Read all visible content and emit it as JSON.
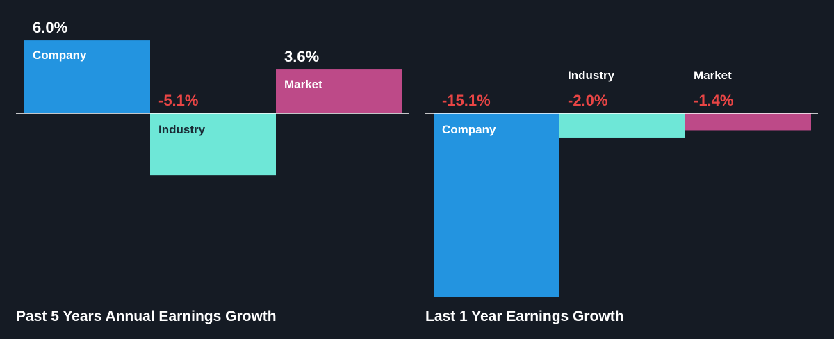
{
  "colors": {
    "background": "#151b24",
    "company": "#2394e0",
    "industry": "#6ee7d7",
    "market": "#bd4a88",
    "positive_text": "#ffffff",
    "negative_text": "#e84545"
  },
  "chart_data": [
    {
      "type": "bar",
      "title": "Past 5 Years Annual Earnings Growth",
      "categories": [
        "Company",
        "Industry",
        "Market"
      ],
      "values": [
        6.0,
        -5.1,
        3.6
      ],
      "value_labels": [
        "6.0%",
        "-5.1%",
        "3.6%"
      ],
      "colors": [
        "#2394e0",
        "#6ee7d7",
        "#bd4a88"
      ],
      "ylim": [
        -15.1,
        6.0
      ]
    },
    {
      "type": "bar",
      "title": "Last 1 Year Earnings Growth",
      "categories": [
        "Company",
        "Industry",
        "Market"
      ],
      "values": [
        -15.1,
        -2.0,
        -1.4
      ],
      "value_labels": [
        "-15.1%",
        "-2.0%",
        "-1.4%"
      ],
      "colors": [
        "#2394e0",
        "#6ee7d7",
        "#bd4a88"
      ],
      "ylim": [
        -15.1,
        6.0
      ]
    }
  ]
}
